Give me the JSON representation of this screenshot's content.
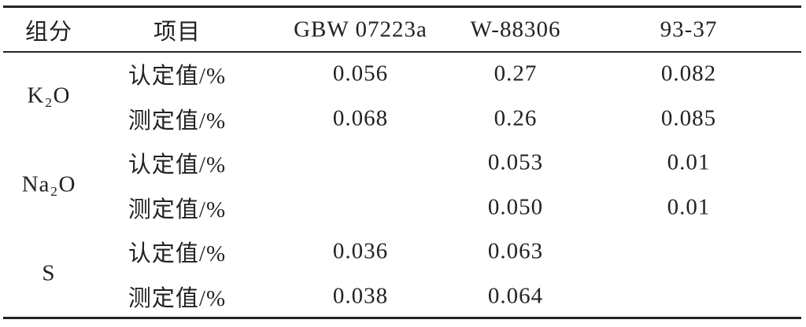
{
  "table": {
    "header": [
      "组分",
      "项目",
      "GBW 07223a",
      "W-88306",
      "93-37"
    ],
    "groups": [
      {
        "component": "K₂O",
        "rows": [
          {
            "item": "认定值/%",
            "values": [
              "0.056",
              "0.27",
              "0.082"
            ]
          },
          {
            "item": "测定值/%",
            "values": [
              "0.068",
              "0.26",
              "0.085"
            ]
          }
        ]
      },
      {
        "component": "Na₂O",
        "rows": [
          {
            "item": "认定值/%",
            "values": [
              null,
              "0.053",
              "0.01"
            ]
          },
          {
            "item": "测定值/%",
            "values": [
              null,
              "0.050",
              "0.01"
            ]
          }
        ]
      },
      {
        "component": "S",
        "rows": [
          {
            "item": "认定值/%",
            "values": [
              "0.036",
              "0.063",
              null
            ]
          },
          {
            "item": "测定值/%",
            "values": [
              "0.038",
              "0.064",
              null
            ]
          }
        ]
      }
    ]
  }
}
